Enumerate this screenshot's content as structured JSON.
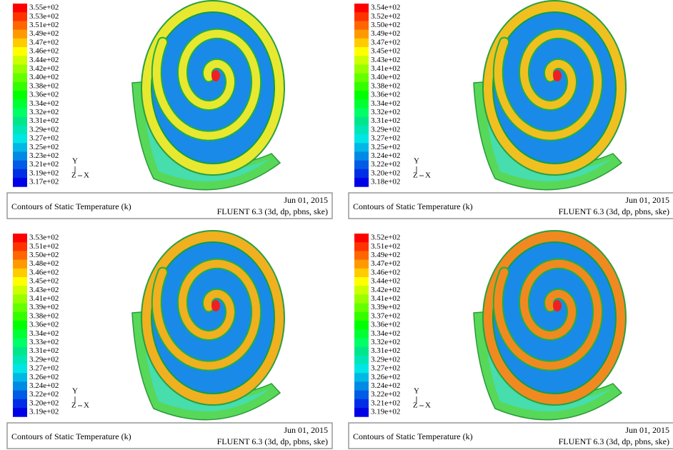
{
  "panels": [
    {
      "legend_labels": [
        "3.55e+02",
        "3.53e+02",
        "3.51e+02",
        "3.49e+02",
        "3.47e+02",
        "3.46e+02",
        "3.44e+02",
        "3.42e+02",
        "3.40e+02",
        "3.38e+02",
        "3.36e+02",
        "3.34e+02",
        "3.32e+02",
        "3.31e+02",
        "3.29e+02",
        "3.27e+02",
        "3.25e+02",
        "3.23e+02",
        "3.21e+02",
        "3.19e+02",
        "3.17e+02"
      ],
      "axis": {
        "y": "Y",
        "z": "Z",
        "x": "X"
      },
      "caption": {
        "title": "Contours of Static Temperature (k)",
        "date": "Jun 01, 2015",
        "solver": "FLUENT 6.3 (3d, dp, pbns, ske)"
      }
    },
    {
      "legend_labels": [
        "3.54e+02",
        "3.52e+02",
        "3.50e+02",
        "3.49e+02",
        "3.47e+02",
        "3.45e+02",
        "3.43e+02",
        "3.41e+02",
        "3.40e+02",
        "3.38e+02",
        "3.36e+02",
        "3.34e+02",
        "3.32e+02",
        "3.31e+02",
        "3.29e+02",
        "3.27e+02",
        "3.25e+02",
        "3.24e+02",
        "3.22e+02",
        "3.20e+02",
        "3.18e+02"
      ],
      "axis": {
        "y": "Y",
        "z": "Z",
        "x": "X"
      },
      "caption": {
        "title": "Contours of Static Temperature (k)",
        "date": "Jun 01, 2015",
        "solver": "FLUENT 6.3 (3d, dp, pbns, ske)"
      }
    },
    {
      "legend_labels": [
        "3.53e+02",
        "3.51e+02",
        "3.50e+02",
        "3.48e+02",
        "3.46e+02",
        "3.45e+02",
        "3.43e+02",
        "3.41e+02",
        "3.39e+02",
        "3.38e+02",
        "3.36e+02",
        "3.34e+02",
        "3.33e+02",
        "3.31e+02",
        "3.29e+02",
        "3.27e+02",
        "3.26e+02",
        "3.24e+02",
        "3.22e+02",
        "3.20e+02",
        "3.19e+02"
      ],
      "axis": {
        "y": "Y",
        "z": "Z",
        "x": "X"
      },
      "caption": {
        "title": "Contours of Static Temperature (k)",
        "date": "Jun 01, 2015",
        "solver": "FLUENT 6.3 (3d, dp, pbns, ske)"
      }
    },
    {
      "legend_labels": [
        "3.52e+02",
        "3.51e+02",
        "3.49e+02",
        "3.47e+02",
        "3.46e+02",
        "3.44e+02",
        "3.42e+02",
        "3.41e+02",
        "3.39e+02",
        "3.37e+02",
        "3.36e+02",
        "3.34e+02",
        "3.32e+02",
        "3.31e+02",
        "3.29e+02",
        "3.27e+02",
        "3.26e+02",
        "3.24e+02",
        "3.22e+02",
        "3.21e+02",
        "3.19e+02"
      ],
      "axis": {
        "y": "Y",
        "z": "Z",
        "x": "X"
      },
      "caption": {
        "title": "Contours of Static Temperature (k)",
        "date": "Jun 01, 2015",
        "solver": "FLUENT 6.3 (3d, dp, pbns, ske)"
      }
    }
  ]
}
